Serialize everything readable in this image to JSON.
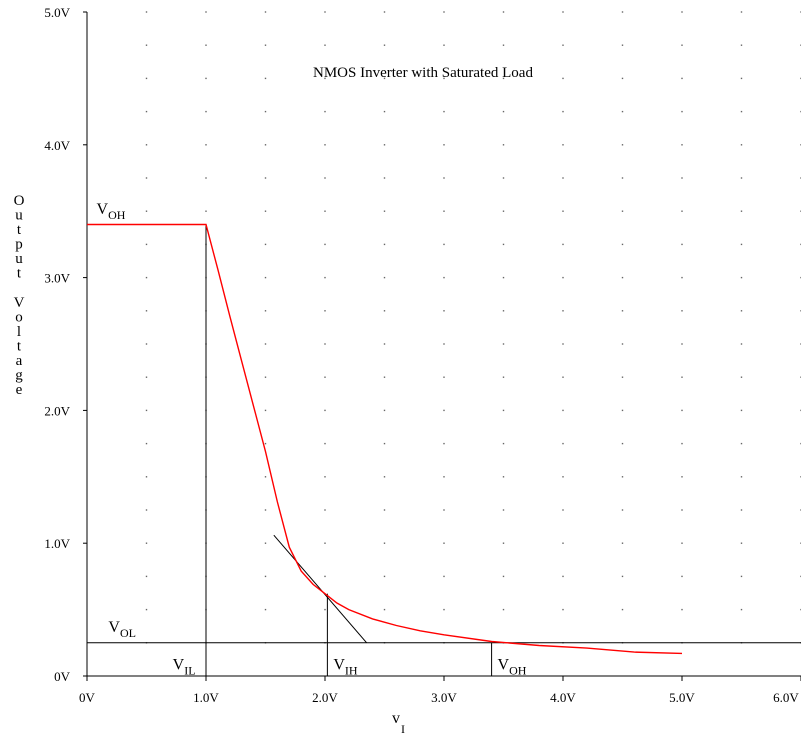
{
  "chart_data": {
    "type": "line",
    "title": "NMOS Inverter with Saturated Load",
    "xlabel": {
      "main": "v",
      "sub": "I"
    },
    "ylabel": "Output Voltage",
    "xlim": [
      0,
      6
    ],
    "ylim": [
      0,
      5
    ],
    "x_ticks": [
      "0V",
      "1.0V",
      "2.0V",
      "3.0V",
      "4.0V",
      "5.0V",
      "6.0V"
    ],
    "y_ticks": [
      "0V",
      "1.0V",
      "2.0V",
      "3.0V",
      "4.0V",
      "5.0V"
    ],
    "grid": "dotted",
    "series": [
      {
        "color": "#ff0000",
        "x": [
          0,
          1.0,
          1.1,
          1.2,
          1.3,
          1.4,
          1.5,
          1.6,
          1.7,
          1.8,
          1.9,
          2.0,
          2.1,
          2.2,
          2.4,
          2.6,
          2.8,
          3.0,
          3.4,
          3.8,
          4.2,
          4.6,
          5.0
        ],
        "y": [
          3.4,
          3.4,
          3.06,
          2.71,
          2.37,
          2.03,
          1.69,
          1.31,
          0.97,
          0.79,
          0.69,
          0.62,
          0.55,
          0.5,
          0.43,
          0.38,
          0.34,
          0.31,
          0.26,
          0.23,
          0.21,
          0.18,
          0.17
        ]
      }
    ],
    "tangent_line": {
      "color": "#000000",
      "x": [
        1.57,
        2.35
      ],
      "y": [
        1.06,
        0.25
      ]
    },
    "reference_lines": {
      "horizontal_y": 0.25,
      "vertical_x": [
        1.0,
        2.02,
        3.4
      ],
      "vertical_top_y": [
        3.4,
        0.62,
        0.25
      ]
    },
    "annotations": [
      {
        "main": "V",
        "sub": "OH",
        "x": 0.08,
        "y": 3.48
      },
      {
        "main": "V",
        "sub": "OL",
        "x": 0.18,
        "y": 0.33
      },
      {
        "main": "V",
        "sub": "IL",
        "x": 0.72,
        "y": 0.05
      },
      {
        "main": "V",
        "sub": "IH",
        "x": 2.07,
        "y": 0.05
      },
      {
        "main": "V",
        "sub": "OH",
        "x": 3.45,
        "y": 0.05
      }
    ]
  }
}
